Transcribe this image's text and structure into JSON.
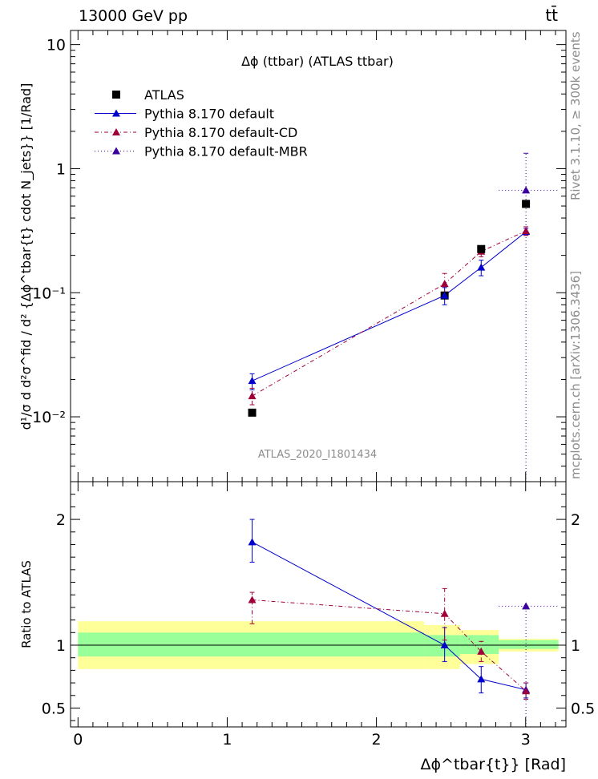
{
  "header": {
    "energy_label": "13000 GeV pp",
    "process_label": "tt̄"
  },
  "side_labels": {
    "rivet": "Rivet 3.1.10, ≥ 300k events",
    "mcplots": "mcplots.cern.ch [arXiv:1306.3436]"
  },
  "chart_data": [
    {
      "type": "scatter",
      "title": "Δϕ (ttbar) (ATLAS ttbar)",
      "ylabel": "d¹/σ d d²σ^fid / d² {Δϕ^tbar{t} cdot N_jets}} [1/Rad]",
      "xlabel": "Δϕ^tbar{t}} [Rad]",
      "y_scale": "log",
      "ylim": [
        0.003,
        13
      ],
      "xlim": [
        -0.05,
        3.27
      ],
      "y_tick_labels": [
        "10⁻²",
        "10⁻¹",
        "1",
        "10"
      ],
      "watermark": "ATLAS_2020_I1801434",
      "legend_position": "top-left",
      "legend": [
        {
          "label": "ATLAS",
          "color": "#000000",
          "style": "square"
        },
        {
          "label": "Pythia 8.170 default",
          "color": "#0000cc",
          "style": "solid"
        },
        {
          "label": "Pythia 8.170 default-CD",
          "color": "#a0003a",
          "style": "dashdot"
        },
        {
          "label": "Pythia 8.170 default-MBR",
          "color": "#3b00a0",
          "style": "dotted"
        }
      ],
      "data": {
        "name": "ATLAS",
        "points": [
          {
            "x": 1.167,
            "y": 0.0108
          },
          {
            "x": 2.457,
            "y": 0.095
          },
          {
            "x": 2.702,
            "y": 0.225
          },
          {
            "x": 3.002,
            "y": 0.52
          }
        ]
      },
      "series": [
        {
          "name": "Pythia 8.170 default",
          "x": [
            1.167,
            2.457,
            2.702,
            3.002
          ],
          "y": [
            0.0195,
            0.095,
            0.16,
            0.31
          ],
          "yerr_low": [
            0.0165,
            0.08,
            0.137,
            0.29
          ],
          "yerr_high": [
            0.0222,
            0.11,
            0.183,
            0.33
          ]
        },
        {
          "name": "Pythia 8.170 default-CD",
          "x": [
            1.167,
            2.457,
            2.702,
            3.002
          ],
          "y": [
            0.0147,
            0.118,
            0.215,
            0.315
          ],
          "yerr_low": [
            0.0125,
            0.098,
            0.195,
            0.29
          ],
          "yerr_high": [
            0.017,
            0.143,
            0.235,
            0.34
          ]
        },
        {
          "name": "Pythia 8.170 default-MBR",
          "points": [
            {
              "x": 3.002,
              "y": 0.67,
              "x_low": 2.82,
              "x_high": 3.22,
              "y_low": 0.003,
              "y_high": 1.33
            }
          ]
        }
      ]
    },
    {
      "type": "line",
      "ylabel": "Ratio to ATLAS",
      "xlabel": "Δϕ^tbar{t}} [Rad]",
      "ylim": [
        0.35,
        2.3
      ],
      "xlim": [
        -0.05,
        3.27
      ],
      "x_ticks": [
        0,
        1,
        2,
        3
      ],
      "y_ticks": [
        0.5,
        1,
        2
      ],
      "uncertainty_bands": [
        {
          "x0": 0.0,
          "x1": 2.32,
          "stat_low": 0.91,
          "stat_high": 1.1,
          "total_low": 0.81,
          "total_high": 1.19
        },
        {
          "x0": 2.32,
          "x1": 2.56,
          "stat_low": 0.91,
          "stat_high": 1.08,
          "total_low": 0.81,
          "total_high": 1.16
        },
        {
          "x0": 2.56,
          "x1": 2.82,
          "stat_low": 0.93,
          "stat_high": 1.08,
          "total_low": 0.85,
          "total_high": 1.12
        },
        {
          "x0": 2.82,
          "x1": 3.22,
          "stat_low": 0.97,
          "stat_high": 1.04,
          "total_low": 0.95,
          "total_high": 1.05
        }
      ],
      "series": [
        {
          "name": "Pythia 8.170 default",
          "x": [
            1.167,
            2.457,
            2.702,
            3.002
          ],
          "y": [
            1.82,
            1.0,
            0.73,
            0.645
          ],
          "yerr_low": [
            1.66,
            0.87,
            0.62,
            0.58
          ],
          "yerr_high": [
            2.0,
            1.14,
            0.83,
            0.7
          ]
        },
        {
          "name": "Pythia 8.170 default-CD",
          "x": [
            1.167,
            2.457,
            2.702,
            3.002
          ],
          "y": [
            1.36,
            1.25,
            0.95,
            0.635
          ],
          "yerr_low": [
            1.17,
            1.04,
            0.87,
            0.57
          ],
          "yerr_high": [
            1.42,
            1.45,
            1.03,
            0.7
          ]
        },
        {
          "name": "Pythia 8.170 default-MBR",
          "points": [
            {
              "x": 3.002,
              "y": 1.31,
              "x_low": 2.82,
              "x_high": 3.22,
              "y_low": 0.35,
              "y_high": 1.31
            }
          ]
        }
      ]
    }
  ]
}
